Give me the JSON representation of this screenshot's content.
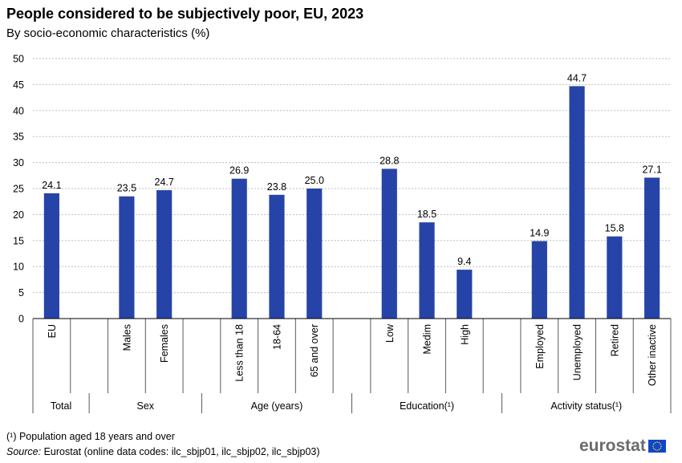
{
  "title": "People considered to be subjectively poor, EU, 2023",
  "subtitle": "By socio-economic characteristics (%)",
  "chart_data": {
    "type": "bar",
    "ylim": [
      0,
      50
    ],
    "ytick_step": 5,
    "grid": true,
    "bar_color": "#2644a7",
    "group_gap_slots": 1,
    "groups": [
      {
        "label": "Total",
        "categories": [
          "EU"
        ],
        "values": [
          24.1
        ]
      },
      {
        "label": "Sex",
        "categories": [
          "Males",
          "Females"
        ],
        "values": [
          23.5,
          24.7
        ]
      },
      {
        "label": "Age (years)",
        "categories": [
          "Less than 18",
          "18-64",
          "65 and over"
        ],
        "values": [
          26.9,
          23.8,
          25.0
        ]
      },
      {
        "label": "Education(¹)",
        "categories": [
          "Low",
          "Medim",
          "High"
        ],
        "values": [
          28.8,
          18.5,
          9.4
        ]
      },
      {
        "label": "Activity status(¹)",
        "categories": [
          "Employed",
          "Unemployed",
          "Retired",
          "Other inactive"
        ],
        "values": [
          14.9,
          44.7,
          15.8,
          27.1
        ]
      }
    ]
  },
  "footnote": "(¹) Population aged 18 years and over",
  "source_label": "Source:",
  "source_text": " Eurostat (online data codes: ilc_sbjp01, ilc_sbjp02, ilc_sbjp03)",
  "logo": {
    "text": "eurostat",
    "flag_color": "#0e47cb",
    "star_color": "#ffde00"
  }
}
